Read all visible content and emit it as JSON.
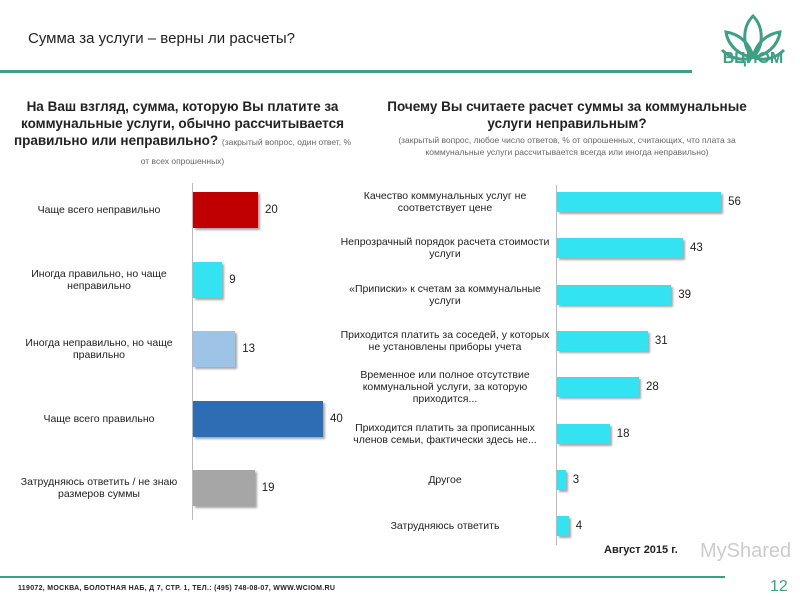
{
  "header": {
    "title": "Сумма за услуги – верны ли расчеты?",
    "logo_text": "ВЦИОМ"
  },
  "footer": {
    "address": "119072, МОСКВА, БОЛОТНАЯ НАБ, Д 7, СТР. 1, ТЕЛ.: (495) 748-08-07, WWW.WCIOM.RU",
    "page": "12",
    "date_note": "Август 2015 г.",
    "watermark": "MyShared"
  },
  "chart_data": [
    {
      "type": "bar",
      "orientation": "horizontal",
      "title": "На Ваш взгляд, сумма, которую Вы платите за коммунальные услуги, обычно рассчитывается правильно или неправильно?",
      "subtitle": "(закрытый вопрос, один ответ, % от всех опрошенных)",
      "categories": [
        "Чаще всего неправильно",
        "Иногда правильно, но чаще неправильно",
        "Иногда неправильно, но чаще правильно",
        "Чаще всего правильно",
        "Затрудняюсь ответить / не знаю размеров суммы"
      ],
      "values": [
        20,
        9,
        13,
        40,
        19
      ],
      "colors": [
        "#c00000",
        "#33e3f2",
        "#9dc3e6",
        "#2e6db4",
        "#a6a6a6"
      ],
      "xlim": [
        0,
        40
      ]
    },
    {
      "type": "bar",
      "orientation": "horizontal",
      "title": "Почему Вы считаете расчет суммы за коммунальные услуги неправильным?",
      "subtitle": "(закрытый вопрос, любое число ответов, % от опрошенных, считающих, что плата за коммунальные услуги рассчитывается всегда или иногда неправильно)",
      "categories": [
        "Качество коммунальных услуг не соответствует цене",
        "Непрозрачный порядок расчета стоимости услуги",
        "«Приписки» к счетам за коммунальные услуги",
        "Приходится платить за соседей, у которых не установлены приборы учета",
        "Временное или полное отсутствие коммунальной услуги, за которую приходится...",
        "Приходится платить за прописанных членов семьи, фактически здесь не...",
        "Другое",
        "Затрудняюсь ответить"
      ],
      "values": [
        56,
        43,
        39,
        31,
        28,
        18,
        3,
        4
      ],
      "colors": [
        "#33e3f2"
      ],
      "xlim": [
        0,
        56
      ]
    }
  ]
}
